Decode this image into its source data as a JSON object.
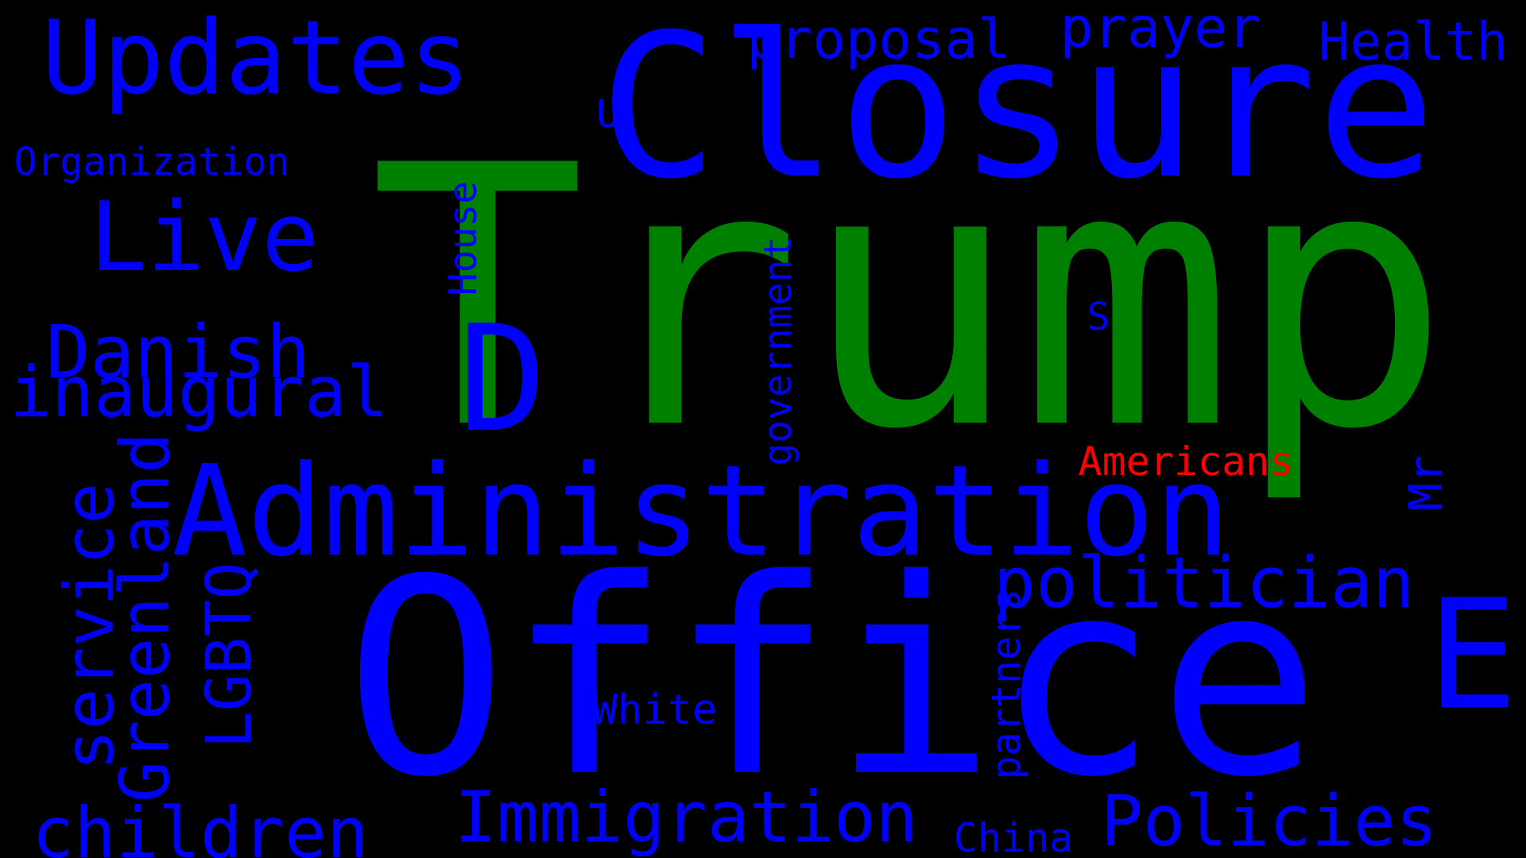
{
  "colors": {
    "background": "#000000",
    "primary": "#0000ff",
    "largest_word": "#008000",
    "accent": "#ff0000"
  },
  "words": {
    "trump": "Trump",
    "office": "Office",
    "closure": "Closure",
    "administration": "Administration",
    "updates": "Updates",
    "live": "Live",
    "d": "D",
    "e": "E",
    "danish": "Danish",
    "inaugural": "inaugural",
    "politician": "politician",
    "immigration": "Immigration",
    "policies": "Policies",
    "children": "children",
    "proposal": "proposal",
    "prayer": "prayer",
    "health": "Health",
    "organization": "Organization",
    "service": "service",
    "greenland": "Greenland",
    "lgbtq": "LGBTQ",
    "house": "House",
    "government": "government",
    "white": "White",
    "partners": "partners",
    "china": "China",
    "americans": "Americans",
    "mr": "Mr",
    "u": "U",
    "s": "S"
  }
}
